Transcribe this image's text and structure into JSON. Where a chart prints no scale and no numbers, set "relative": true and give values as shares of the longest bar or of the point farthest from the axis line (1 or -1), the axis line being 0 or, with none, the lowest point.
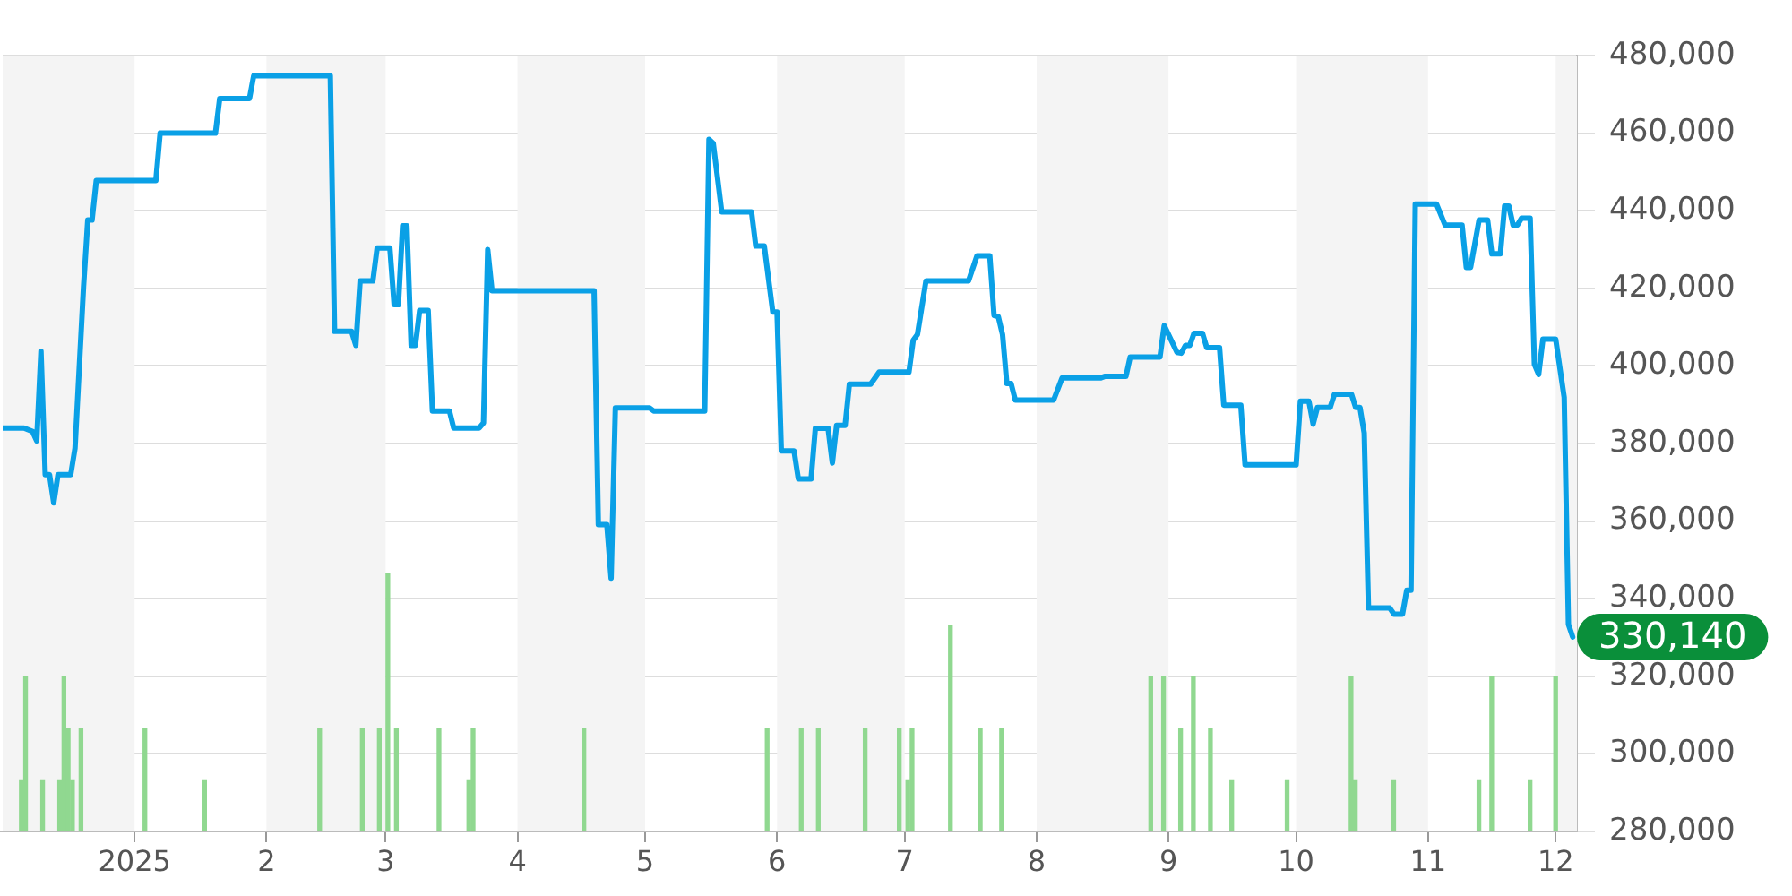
{
  "chart_data": [
    {
      "type": "line",
      "xlim": [
        "2024-12-01",
        "2025-12-06"
      ],
      "xticks": [
        {
          "value": "2025-01-01",
          "label": "2025"
        },
        {
          "value": "2025-02-01",
          "label": "2"
        },
        {
          "value": "2025-03-01",
          "label": "3"
        },
        {
          "value": "2025-04-01",
          "label": "4"
        },
        {
          "value": "2025-05-01",
          "label": "5"
        },
        {
          "value": "2025-06-01",
          "label": "6"
        },
        {
          "value": "2025-07-01",
          "label": "7"
        },
        {
          "value": "2025-08-01",
          "label": "8"
        },
        {
          "value": "2025-09-01",
          "label": "9"
        },
        {
          "value": "2025-10-01",
          "label": "10"
        },
        {
          "value": "2025-11-01",
          "label": "11"
        },
        {
          "value": "2025-12-01",
          "label": "12"
        }
      ],
      "ylim": [
        280000,
        480000
      ],
      "yticks": [
        {
          "value": 280000,
          "label": "280,000"
        },
        {
          "value": 300000,
          "label": "300,000"
        },
        {
          "value": 320000,
          "label": "320,000"
        },
        {
          "value": 340000,
          "label": "340,000"
        },
        {
          "value": 360000,
          "label": "360,000"
        },
        {
          "value": 380000,
          "label": "380,000"
        },
        {
          "value": 400000,
          "label": "400,000"
        },
        {
          "value": 420000,
          "label": "420,000"
        },
        {
          "value": 440000,
          "label": "440,000"
        },
        {
          "value": 460000,
          "label": "460,000"
        },
        {
          "value": 480000,
          "label": "480,000"
        }
      ],
      "grid": "y",
      "legend": false,
      "marker": "none",
      "line_style": "solid",
      "bands": [
        {
          "axis": "x",
          "from": "2024-12-01",
          "to": "2025-01-01",
          "color": "#f4f4f4"
        },
        {
          "axis": "x",
          "from": "2025-02-01",
          "to": "2025-03-01",
          "color": "#f4f4f4"
        },
        {
          "axis": "x",
          "from": "2025-04-01",
          "to": "2025-05-01",
          "color": "#f4f4f4"
        },
        {
          "axis": "x",
          "from": "2025-06-01",
          "to": "2025-07-01",
          "color": "#f4f4f4"
        },
        {
          "axis": "x",
          "from": "2025-08-01",
          "to": "2025-09-01",
          "color": "#f4f4f4"
        },
        {
          "axis": "x",
          "from": "2025-10-01",
          "to": "2025-11-01",
          "color": "#f4f4f4"
        },
        {
          "axis": "x",
          "from": "2025-12-01",
          "to": "2025-12-06",
          "color": "#f4f4f4"
        }
      ],
      "annotations": [
        {
          "text": "330,140",
          "x": "2025-12-05",
          "y": 330140
        }
      ],
      "series": [
        {
          "color": "#0aa0e6",
          "x": [
            "2024-12-01",
            "2024-12-06",
            "2024-12-08",
            "2024-12-09",
            "2024-12-10",
            "2024-12-11",
            "2024-12-12",
            "2024-12-13",
            "2024-12-14",
            "2024-12-17",
            "2024-12-18",
            "2024-12-20",
            "2024-12-21",
            "2024-12-22",
            "2024-12-23",
            "2025-01-06",
            "2025-01-07",
            "2025-01-20",
            "2025-01-21",
            "2025-01-28",
            "2025-01-29",
            "2025-02-16",
            "2025-02-17",
            "2025-02-21",
            "2025-02-22",
            "2025-02-23",
            "2025-02-26",
            "2025-02-27",
            "2025-03-02",
            "2025-03-03",
            "2025-03-04",
            "2025-03-05",
            "2025-03-06",
            "2025-03-07",
            "2025-03-08",
            "2025-03-09",
            "2025-03-11",
            "2025-03-12",
            "2025-03-16",
            "2025-03-17",
            "2025-03-23",
            "2025-03-24",
            "2025-03-25",
            "2025-03-26",
            "2025-04-19",
            "2025-04-20",
            "2025-04-22",
            "2025-04-23",
            "2025-04-24",
            "2025-05-02",
            "2025-05-03",
            "2025-05-15",
            "2025-05-16",
            "2025-05-17",
            "2025-05-19",
            "2025-05-26",
            "2025-05-27",
            "2025-05-29",
            "2025-05-31",
            "2025-06-01",
            "2025-06-02",
            "2025-06-05",
            "2025-06-06",
            "2025-06-09",
            "2025-06-10",
            "2025-06-13",
            "2025-06-14",
            "2025-06-15",
            "2025-06-17",
            "2025-06-18",
            "2025-06-23",
            "2025-06-25",
            "2025-07-02",
            "2025-07-03",
            "2025-07-04",
            "2025-07-06",
            "2025-07-16",
            "2025-07-18",
            "2025-07-21",
            "2025-07-22",
            "2025-07-23",
            "2025-07-24",
            "2025-07-25",
            "2025-07-26",
            "2025-07-27",
            "2025-08-05",
            "2025-08-07",
            "2025-08-16",
            "2025-08-17",
            "2025-08-22",
            "2025-08-23",
            "2025-08-30",
            "2025-08-31",
            "2025-09-03",
            "2025-09-04",
            "2025-09-05",
            "2025-09-06",
            "2025-09-07",
            "2025-09-09",
            "2025-09-10",
            "2025-09-13",
            "2025-09-14",
            "2025-09-18",
            "2025-09-19",
            "2025-10-01",
            "2025-10-02",
            "2025-10-04",
            "2025-10-05",
            "2025-10-06",
            "2025-10-09",
            "2025-10-10",
            "2025-10-14",
            "2025-10-15",
            "2025-10-16",
            "2025-10-17",
            "2025-10-18",
            "2025-10-23",
            "2025-10-24",
            "2025-10-26",
            "2025-10-27",
            "2025-10-28",
            "2025-10-29",
            "2025-11-03",
            "2025-11-05",
            "2025-11-09",
            "2025-11-10",
            "2025-11-11",
            "2025-11-13",
            "2025-11-15",
            "2025-11-16",
            "2025-11-18",
            "2025-11-19",
            "2025-11-20",
            "2025-11-21",
            "2025-11-22",
            "2025-11-23",
            "2025-11-25",
            "2025-11-26",
            "2025-11-27",
            "2025-11-28",
            "2025-12-01",
            "2025-12-03",
            "2025-12-04",
            "2025-12-05"
          ],
          "values": [
            384000,
            384000,
            383100,
            380700,
            403800,
            372000,
            372000,
            364700,
            372000,
            372000,
            378800,
            420400,
            437600,
            437600,
            447800,
            447800,
            460000,
            460000,
            468900,
            468900,
            474800,
            474800,
            408900,
            408900,
            405300,
            421900,
            421900,
            430400,
            430400,
            415800,
            415800,
            436100,
            436100,
            405300,
            405300,
            414300,
            414300,
            388400,
            388400,
            384000,
            384000,
            385300,
            430000,
            419400,
            419400,
            359100,
            359100,
            345300,
            389200,
            389200,
            388400,
            388400,
            458400,
            457400,
            439700,
            439700,
            430900,
            430900,
            413900,
            413900,
            378100,
            378100,
            370900,
            370900,
            383900,
            383900,
            375000,
            384700,
            384700,
            395300,
            395300,
            398400,
            398400,
            406600,
            408100,
            421900,
            421900,
            428400,
            428400,
            413000,
            412700,
            408100,
            395500,
            395500,
            391200,
            391200,
            396900,
            396900,
            397300,
            397300,
            402300,
            402300,
            410400,
            403500,
            403300,
            405300,
            405300,
            408400,
            408400,
            404700,
            404700,
            389900,
            389900,
            374500,
            374500,
            390900,
            390900,
            385000,
            389300,
            389300,
            392700,
            392700,
            389300,
            389300,
            382700,
            337600,
            337600,
            336000,
            336000,
            342200,
            342200,
            441700,
            441700,
            436300,
            436300,
            425400,
            425400,
            437600,
            437600,
            428900,
            428900,
            441200,
            441200,
            436300,
            436300,
            438100,
            438100,
            400400,
            397800,
            406900,
            406900,
            391900,
            333400,
            330140
          ]
        }
      ]
    },
    {
      "type": "bar",
      "relative": true,
      "legend": false,
      "xlim": [
        "2024-12-01",
        "2025-12-06"
      ],
      "series": [
        {
          "color": "#90d890",
          "x": [
            "2024-12-06",
            "2024-12-07",
            "2024-12-11",
            "2024-12-15",
            "2024-12-16",
            "2024-12-17",
            "2024-12-18",
            "2024-12-20",
            "2025-01-04",
            "2025-01-18",
            "2025-02-14",
            "2025-02-24",
            "2025-02-28",
            "2025-03-02",
            "2025-03-04",
            "2025-03-14",
            "2025-03-21",
            "2025-03-22",
            "2025-04-17",
            "2025-05-30",
            "2025-06-07",
            "2025-06-11",
            "2025-06-22",
            "2025-06-30",
            "2025-07-02",
            "2025-07-03",
            "2025-07-12",
            "2025-07-19",
            "2025-07-24",
            "2025-08-28",
            "2025-08-31",
            "2025-09-04",
            "2025-09-07",
            "2025-09-11",
            "2025-09-16",
            "2025-09-29",
            "2025-10-14",
            "2025-10-15",
            "2025-10-24",
            "2025-11-13",
            "2025-11-16",
            "2025-11-25",
            "2025-12-01"
          ],
          "values": [
            0.2,
            0.6,
            0.2,
            0.2,
            0.6,
            0.4,
            0.2,
            0.4,
            0.4,
            0.2,
            0.4,
            0.4,
            0.4,
            1,
            0.4,
            0.4,
            0.2,
            0.4,
            0.4,
            0.4,
            0.4,
            0.4,
            0.4,
            0.4,
            0.2,
            0.4,
            0.8,
            0.4,
            0.4,
            0.6,
            0.6,
            0.4,
            0.6,
            0.4,
            0.2,
            0.2,
            0.6,
            0.2,
            0.2,
            0.2,
            0.6,
            0.2,
            0.6
          ]
        }
      ]
    }
  ]
}
